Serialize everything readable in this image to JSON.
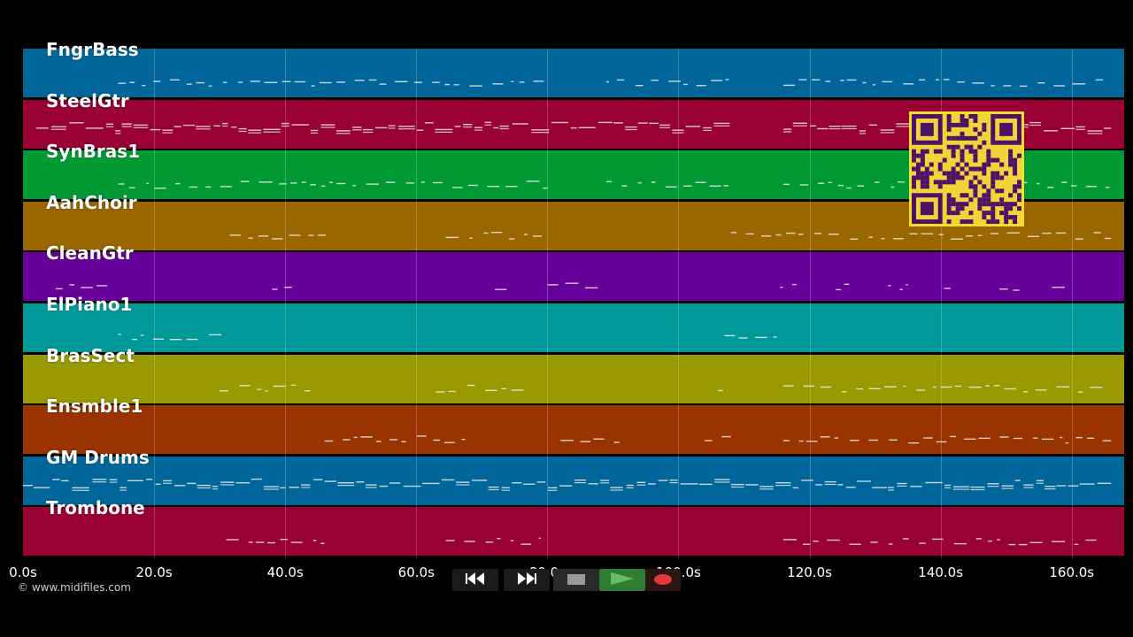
{
  "tracks": [
    {
      "name": "FngrBass",
      "color": "#006699"
    },
    {
      "name": "SteelGtr",
      "color": "#990033"
    },
    {
      "name": "SynBras1",
      "color": "#009933"
    },
    {
      "name": "AahChoir",
      "color": "#996600"
    },
    {
      "name": "CleanGtr",
      "color": "#660099"
    },
    {
      "name": "ElPiano1",
      "color": "#009999"
    },
    {
      "name": "BrasSect",
      "color": "#999900"
    },
    {
      "name": "Ensmble1",
      "color": "#993300"
    },
    {
      "name": "GM Drums",
      "color": "#006699"
    },
    {
      "name": "Trombone",
      "color": "#990033"
    }
  ],
  "timeline": {
    "start_seconds": 0,
    "end_seconds": 168,
    "ticks": [
      {
        "value": 0,
        "label": "0.0s"
      },
      {
        "value": 20,
        "label": "20.0s"
      },
      {
        "value": 40,
        "label": "40.0s"
      },
      {
        "value": 60,
        "label": "60.0s"
      },
      {
        "value": 80,
        "label": "80.0s"
      },
      {
        "value": 100,
        "label": "100.0s"
      },
      {
        "value": 120,
        "label": "120.0s"
      },
      {
        "value": 140,
        "label": "140.0s"
      },
      {
        "value": 160,
        "label": "160.0s"
      }
    ]
  },
  "note_segments": [
    {
      "track": 0,
      "ranges": [
        [
          14.5,
          80
        ],
        [
          89,
          108
        ],
        [
          116,
          166
        ]
      ]
    },
    {
      "track": 1,
      "ranges": [
        [
          2,
          108
        ],
        [
          116,
          166
        ]
      ]
    },
    {
      "track": 2,
      "ranges": [
        [
          14.5,
          80
        ],
        [
          89,
          108
        ],
        [
          116,
          166
        ]
      ]
    },
    {
      "track": 3,
      "ranges": [
        [
          31.5,
          47
        ],
        [
          64.5,
          80
        ],
        [
          108,
          166
        ]
      ]
    },
    {
      "track": 4,
      "ranges": [
        [
          5,
          13
        ],
        [
          38,
          41
        ],
        [
          72,
          75
        ],
        [
          80,
          88
        ],
        [
          115.5,
          118
        ],
        [
          124,
          127
        ],
        [
          132,
          135
        ],
        [
          140.5,
          143
        ],
        [
          149,
          152
        ],
        [
          157,
          160
        ]
      ]
    },
    {
      "track": 5,
      "ranges": [
        [
          14.5,
          31
        ],
        [
          107,
          115
        ]
      ]
    },
    {
      "track": 6,
      "ranges": [
        [
          30,
          44
        ],
        [
          63,
          77
        ],
        [
          106,
          108
        ],
        [
          116,
          166
        ]
      ]
    },
    {
      "track": 7,
      "ranges": [
        [
          46,
          68
        ],
        [
          82,
          91
        ],
        [
          104,
          108
        ],
        [
          116,
          166
        ]
      ]
    },
    {
      "track": 8,
      "ranges": [
        [
          0,
          166
        ]
      ]
    },
    {
      "track": 9,
      "ranges": [
        [
          31,
          46
        ],
        [
          64.5,
          79
        ],
        [
          116,
          164
        ]
      ]
    }
  ],
  "credit": "© www.midifiles.com",
  "transport": {
    "rewind_icon": "rewind-icon",
    "fast_forward_icon": "fast-forward-icon",
    "stop_icon": "stop-icon",
    "play_icon": "play-icon",
    "record_icon": "record-icon",
    "play_color": "#2e7d32",
    "record_color": "#e53935"
  },
  "qr_code": {
    "icon": "qr-code-icon",
    "background": "#f2d33a",
    "foreground": "#4a1466"
  }
}
